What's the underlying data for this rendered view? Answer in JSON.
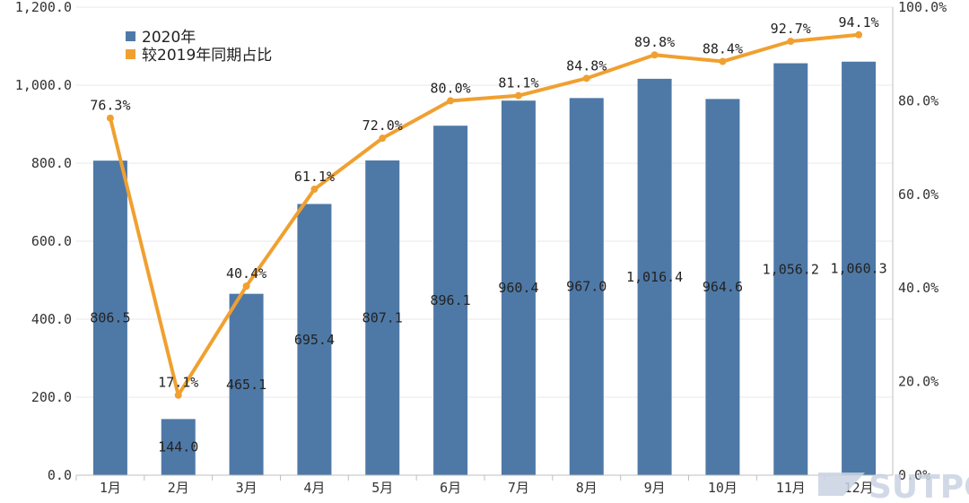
{
  "chart_data": {
    "type": "bar+line",
    "categories": [
      "1月",
      "2月",
      "3月",
      "4月",
      "5月",
      "6月",
      "7月",
      "8月",
      "9月",
      "10月",
      "11月",
      "12月"
    ],
    "series": [
      {
        "name": "2020年",
        "type": "bar",
        "axis": "left",
        "color": "#4e79a7",
        "values": [
          806.5,
          144.0,
          465.1,
          695.4,
          807.1,
          896.1,
          960.4,
          967.0,
          1016.4,
          964.6,
          1056.2,
          1060.3
        ],
        "labels": [
          "806.5",
          "144.0",
          "465.1",
          "695.4",
          "807.1",
          "896.1",
          "960.4",
          "967.0",
          "1,016.4",
          "964.6",
          "1,056.2",
          "1,060.3"
        ]
      },
      {
        "name": "较2019年同期占比",
        "type": "line",
        "axis": "right",
        "color": "#f0a030",
        "values": [
          76.3,
          17.1,
          40.4,
          61.1,
          72.0,
          80.0,
          81.1,
          84.8,
          89.8,
          88.4,
          92.7,
          94.1
        ],
        "labels": [
          "76.3%",
          "17.1%",
          "40.4%",
          "61.1%",
          "72.0%",
          "80.0%",
          "81.1%",
          "84.8%",
          "89.8%",
          "88.4%",
          "92.7%",
          "94.1%"
        ]
      }
    ],
    "y_left": {
      "ylim": [
        0,
        1200
      ],
      "ticks": [
        0,
        200,
        400,
        600,
        800,
        1000,
        1200
      ],
      "tick_labels": [
        "0.0",
        "200.0",
        "400.0",
        "600.0",
        "800.0",
        "1,000.0",
        "1,200.0"
      ]
    },
    "y_right": {
      "ylim": [
        0,
        100
      ],
      "ticks": [
        0,
        20,
        40,
        60,
        80,
        100
      ],
      "tick_labels": [
        "0.0%",
        "20.0%",
        "40.0%",
        "60.0%",
        "80.0%",
        "100.0%"
      ]
    },
    "legend_position": "top-left",
    "grid": true
  },
  "watermark": {
    "text": "SUTPC"
  }
}
